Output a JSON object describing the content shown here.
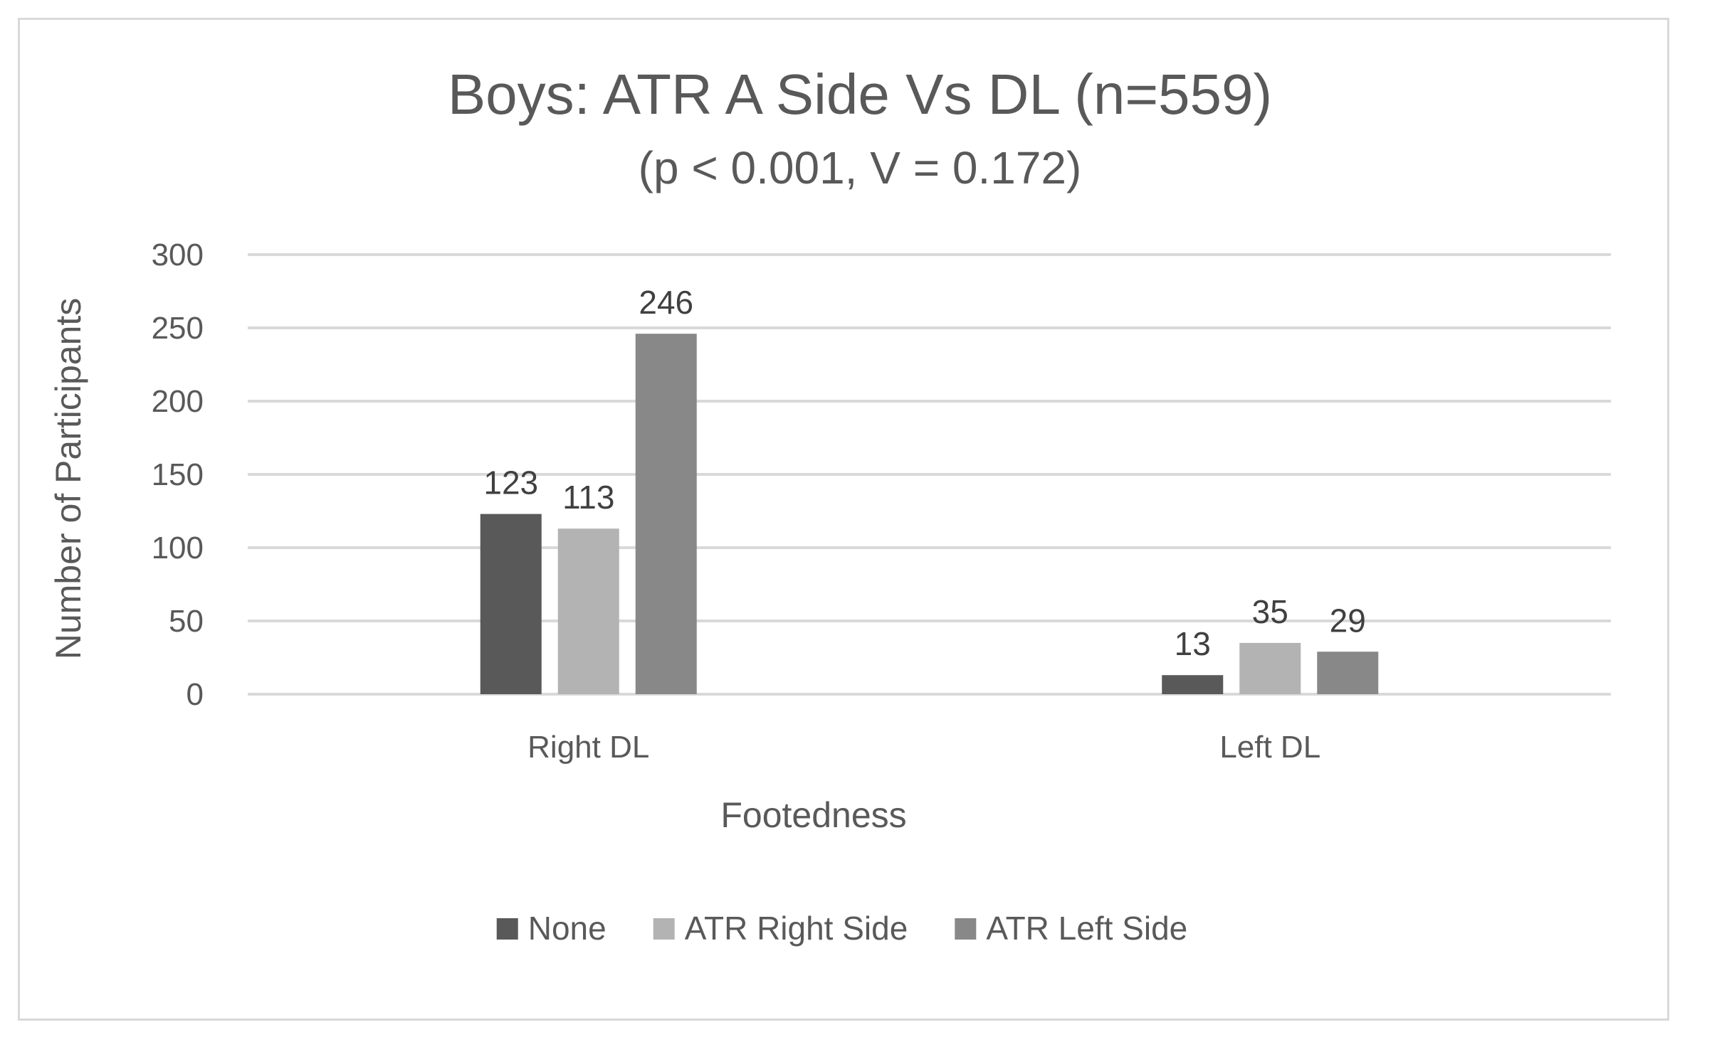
{
  "chart_data": {
    "type": "bar",
    "title": "Boys: ATR A Side Vs DL (n=559)",
    "subtitle": "(p < 0.001, V = 0.172)",
    "xlabel": "Footedness",
    "ylabel": "Number of Participants",
    "categories": [
      "Right DL",
      "Left DL"
    ],
    "series": [
      {
        "name": "None",
        "values": [
          123,
          13
        ],
        "color": "#595959"
      },
      {
        "name": "ATR Right Side",
        "values": [
          113,
          35
        ],
        "color": "#b3b3b3"
      },
      {
        "name": "ATR Left Side",
        "values": [
          246,
          29
        ],
        "color": "#888888"
      }
    ],
    "ylim": [
      0,
      300
    ],
    "yticks": [
      0,
      50,
      100,
      150,
      200,
      250,
      300
    ],
    "grid": true,
    "legend_position": "bottom",
    "data_labels": true
  }
}
